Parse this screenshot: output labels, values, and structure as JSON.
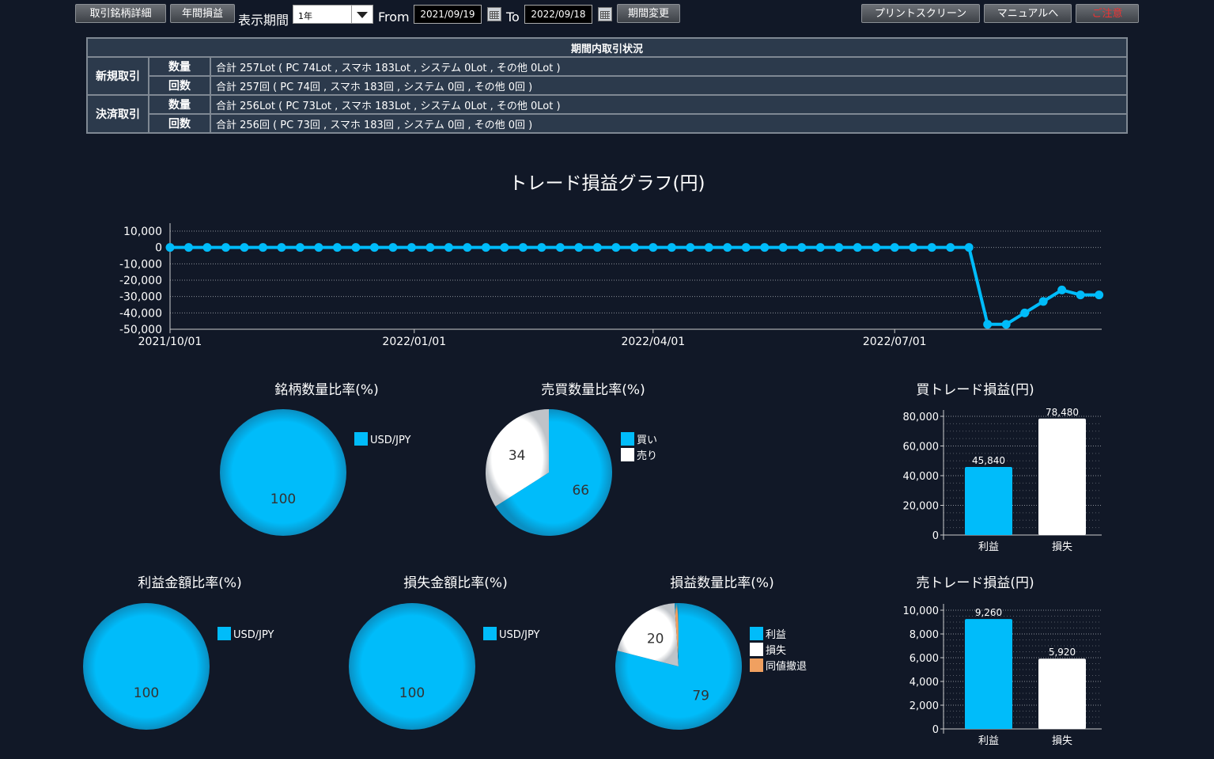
{
  "toolbar": {
    "btn_detail": "取引銘柄詳細",
    "btn_annual": "年間損益",
    "period_label": "表示期間",
    "period_value": "1年",
    "from_label": "From",
    "from_date": "2021/09/19",
    "to_label": "To",
    "to_date": "2022/09/18",
    "btn_change": "期間変更",
    "btn_print": "プリントスクリーン",
    "btn_manual": "マニュアルへ",
    "btn_notice": "ご注意"
  },
  "summary": {
    "header": "期間内取引状況",
    "new_label": "新規取引",
    "settle_label": "決済取引",
    "qty_label": "数量",
    "count_label": "回数",
    "new_qty": "合計 257Lot ( PC 74Lot , スマホ 183Lot , システム 0Lot , その他 0Lot )",
    "new_count": "合計 257回 ( PC 74回 , スマホ 183回 , システム 0回 , その他 0回 )",
    "settle_qty": "合計 256Lot ( PC 73Lot , スマホ 183Lot , システム 0Lot , その他 0Lot )",
    "settle_count": "合計 256回 ( PC 73回 , スマホ 183回 , システム 0回 , その他 0回 )"
  },
  "colors": {
    "blue": "#00bcfa",
    "white": "#ffffff",
    "orange": "#f0a060"
  },
  "chart_data": [
    {
      "type": "line",
      "title": "トレード損益グラフ(円)",
      "y_ticks": [
        "10,000",
        "0",
        "-10,000",
        "-20,000",
        "-30,000",
        "-40,000",
        "-50,000"
      ],
      "ylim": [
        -50000,
        10000
      ],
      "x_tick_labels": [
        "2021/10/01",
        "2022/01/01",
        "2022/04/01",
        "2022/07/01"
      ],
      "x": [
        "2021/10/01",
        "2021/10/08",
        "2021/10/15",
        "2021/10/22",
        "2021/10/29",
        "2021/11/05",
        "2021/11/12",
        "2021/11/19",
        "2021/11/26",
        "2021/12/03",
        "2021/12/10",
        "2021/12/17",
        "2021/12/24",
        "2021/12/31",
        "2022/01/07",
        "2022/01/14",
        "2022/01/21",
        "2022/01/28",
        "2022/02/04",
        "2022/02/11",
        "2022/02/18",
        "2022/02/25",
        "2022/03/04",
        "2022/03/11",
        "2022/03/18",
        "2022/03/25",
        "2022/04/01",
        "2022/04/08",
        "2022/04/15",
        "2022/04/22",
        "2022/04/29",
        "2022/05/06",
        "2022/05/13",
        "2022/05/20",
        "2022/05/27",
        "2022/06/03",
        "2022/06/10",
        "2022/06/17",
        "2022/06/24",
        "2022/07/01",
        "2022/07/08",
        "2022/07/15",
        "2022/07/22",
        "2022/07/29",
        "2022/08/05",
        "2022/08/12",
        "2022/08/19",
        "2022/08/26",
        "2022/09/02",
        "2022/09/09",
        "2022/09/16"
      ],
      "values": [
        0,
        0,
        0,
        0,
        0,
        0,
        0,
        0,
        0,
        0,
        0,
        0,
        0,
        0,
        0,
        0,
        0,
        0,
        0,
        0,
        0,
        0,
        0,
        0,
        0,
        0,
        0,
        0,
        0,
        0,
        0,
        0,
        0,
        0,
        0,
        0,
        0,
        0,
        0,
        0,
        0,
        0,
        0,
        0,
        -47000,
        -47000,
        -40000,
        -33000,
        -26000,
        -29000,
        -29000
      ],
      "values_note": "",
      "series": [
        {
          "values": [
            0,
            0,
            0,
            0,
            0,
            0,
            0,
            0,
            0,
            0,
            0,
            0,
            0,
            0,
            0,
            0,
            0,
            0,
            0,
            0,
            0,
            0,
            0,
            0,
            0,
            0,
            0,
            0,
            0,
            0,
            0,
            0,
            0,
            0,
            0,
            0,
            0,
            0,
            0,
            0,
            0,
            0,
            0,
            0,
            -47000,
            -47000,
            -40000,
            -33000,
            -26000,
            -29000,
            -29000
          ]
        }
      ]
    },
    {
      "type": "pie",
      "title": "銘柄数量比率(%)",
      "labels": [
        "USD/JPY"
      ],
      "values": [
        100
      ]
    },
    {
      "type": "pie",
      "title": "売買数量比率(%)",
      "labels": [
        "買い",
        "売り"
      ],
      "values": [
        66,
        34
      ]
    },
    {
      "type": "bar",
      "title": "買トレード損益(円)",
      "categories": [
        "利益",
        "損失"
      ],
      "values": [
        45840,
        78480
      ],
      "value_labels": [
        "45,840",
        "78,480"
      ],
      "y_ticks": [
        "80,000",
        "60,000",
        "40,000",
        "20,000",
        "0"
      ],
      "ylim": [
        0,
        80000
      ]
    },
    {
      "type": "pie",
      "title": "利益金額比率(%)",
      "labels": [
        "USD/JPY"
      ],
      "values": [
        100
      ]
    },
    {
      "type": "pie",
      "title": "損失金額比率(%)",
      "labels": [
        "USD/JPY"
      ],
      "values": [
        100
      ]
    },
    {
      "type": "pie",
      "title": "損益数量比率(%)",
      "labels": [
        "利益",
        "損失",
        "同値撤退"
      ],
      "values": [
        79,
        20,
        1
      ]
    },
    {
      "type": "bar",
      "title": "売トレード損益(円)",
      "categories": [
        "利益",
        "損失"
      ],
      "values": [
        9260,
        5920
      ],
      "value_labels": [
        "9,260",
        "5,920"
      ],
      "y_ticks": [
        "10,000",
        "8,000",
        "6,000",
        "4,000",
        "2,000",
        "0"
      ],
      "ylim": [
        0,
        10000
      ]
    }
  ]
}
